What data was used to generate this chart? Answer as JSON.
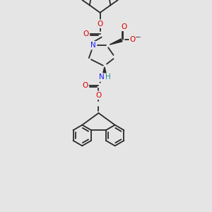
{
  "bg_color": "#e5e5e5",
  "bond_color": "#2a2a2a",
  "bond_width": 1.3,
  "N_color": "#1a1aff",
  "O_color": "#dd0000",
  "H_color": "#2a9090",
  "font_size": 7.5,
  "fig_size": [
    3.0,
    3.0
  ],
  "dpi": 100,
  "xlim": [
    60,
    260
  ],
  "ylim": [
    10,
    295
  ]
}
